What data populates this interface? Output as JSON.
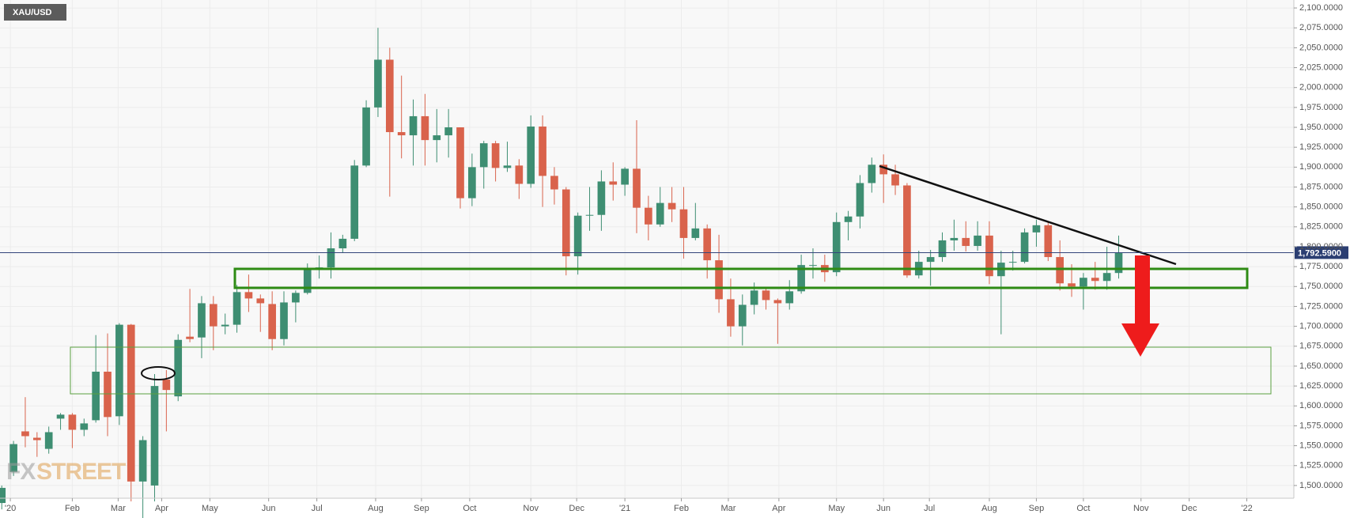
{
  "chart_data": {
    "type": "candlestick",
    "title": "XAU/USD",
    "watermark_prefix": "FX",
    "watermark": "STREET",
    "up_color": "#3e8e72",
    "down_color": "#d9634c",
    "grid": true,
    "x": [
      0,
      1,
      2,
      3,
      4,
      5,
      6,
      7,
      8,
      9,
      10,
      11,
      12,
      13,
      14,
      15,
      16,
      17,
      18,
      19,
      20,
      21,
      22,
      23,
      24,
      25,
      26,
      27,
      28,
      29,
      30,
      31,
      32,
      33,
      34,
      35,
      36,
      37,
      38,
      39,
      40,
      41,
      42,
      43,
      44,
      45,
      46,
      47,
      48,
      49,
      50,
      51,
      52,
      53,
      54,
      55,
      56,
      57,
      58,
      59,
      60,
      61,
      62,
      63,
      64,
      65,
      66,
      67,
      68,
      69,
      70,
      71,
      72,
      73,
      74,
      75,
      76,
      77,
      78,
      79,
      80,
      81,
      82,
      83,
      84,
      85,
      86,
      87,
      88,
      89,
      90,
      91,
      92,
      93,
      94,
      95
    ],
    "open": [
      1478,
      1517,
      1568,
      1560,
      1546,
      1584,
      1589,
      1570,
      1582,
      1643,
      1587,
      1702,
      1505,
      1500,
      1633,
      1612,
      1687,
      1686,
      1728,
      1700,
      1702,
      1743,
      1735,
      1728,
      1684,
      1730,
      1742,
      1771,
      1774,
      1798,
      1810,
      1902,
      1975,
      2035,
      1944,
      1940,
      1964,
      1934,
      1940,
      1950,
      1861,
      1900,
      1930,
      1899,
      1902,
      1879,
      1951,
      1889,
      1872,
      1788,
      1839,
      1840,
      1882,
      1878,
      1898,
      1849,
      1828,
      1855,
      1847,
      1811,
      1823,
      1783,
      1734,
      1700,
      1727,
      1745,
      1733,
      1729,
      1744,
      1777,
      1777,
      1768,
      1831,
      1838,
      1880,
      1903,
      1891,
      1877,
      1764,
      1781,
      1787,
      1808,
      1811,
      1801,
      1814,
      1763,
      1780,
      1781,
      1818,
      1827,
      1787,
      1754,
      1750,
      1761,
      1757,
      1767
    ],
    "high": [
      1500,
      1556,
      1611,
      1567,
      1574,
      1591,
      1591,
      1584,
      1689,
      1691,
      1704,
      1703,
      1562,
      1640,
      1645,
      1690,
      1747,
      1738,
      1738,
      1716,
      1752,
      1765,
      1740,
      1744,
      1744,
      1745,
      1779,
      1789,
      1818,
      1815,
      1909,
      1984,
      2075,
      2050,
      2015,
      1985,
      1992,
      1973,
      1973,
      1950,
      1917,
      1933,
      1933,
      1932,
      1910,
      1965,
      1965,
      1900,
      1875,
      1843,
      1875,
      1896,
      1906,
      1900,
      1959,
      1864,
      1875,
      1875,
      1875,
      1855,
      1828,
      1815,
      1760,
      1740,
      1755,
      1747,
      1735,
      1758,
      1790,
      1798,
      1790,
      1843,
      1845,
      1890,
      1912,
      1916,
      1903,
      1880,
      1795,
      1796,
      1818,
      1834,
      1832,
      1832,
      1832,
      1795,
      1795,
      1823,
      1834,
      1831,
      1808,
      1778,
      1767,
      1781,
      1800,
      1814
    ],
    "low": [
      1470,
      1512,
      1548,
      1536,
      1540,
      1570,
      1547,
      1562,
      1579,
      1562,
      1576,
      1480,
      1451,
      1480,
      1568,
      1606,
      1680,
      1660,
      1670,
      1690,
      1692,
      1718,
      1693,
      1670,
      1676,
      1705,
      1740,
      1760,
      1760,
      1792,
      1807,
      1900,
      1963,
      1863,
      1911,
      1902,
      1902,
      1906,
      1912,
      1848,
      1851,
      1873,
      1882,
      1894,
      1860,
      1874,
      1850,
      1853,
      1764,
      1765,
      1820,
      1820,
      1858,
      1864,
      1817,
      1808,
      1825,
      1831,
      1785,
      1808,
      1760,
      1717,
      1687,
      1676,
      1715,
      1721,
      1678,
      1721,
      1741,
      1760,
      1756,
      1763,
      1808,
      1823,
      1868,
      1855,
      1865,
      1761,
      1760,
      1751,
      1781,
      1795,
      1794,
      1795,
      1753,
      1690,
      1770,
      1779,
      1800,
      1782,
      1745,
      1737,
      1721,
      1746,
      1746,
      1760
    ],
    "close": [
      1497,
      1552,
      1562,
      1557,
      1567,
      1589,
      1570,
      1578,
      1643,
      1586,
      1702,
      1505,
      1557,
      1625,
      1620,
      1683,
      1684,
      1729,
      1700,
      1702,
      1743,
      1735,
      1729,
      1684,
      1730,
      1742,
      1771,
      1774,
      1798,
      1810,
      1902,
      1975,
      2035,
      1944,
      1940,
      1964,
      1934,
      1940,
      1950,
      1861,
      1900,
      1930,
      1899,
      1902,
      1879,
      1951,
      1889,
      1872,
      1788,
      1839,
      1840,
      1882,
      1878,
      1898,
      1849,
      1828,
      1855,
      1847,
      1811,
      1823,
      1783,
      1734,
      1700,
      1727,
      1745,
      1733,
      1729,
      1744,
      1777,
      1777,
      1768,
      1831,
      1838,
      1880,
      1903,
      1891,
      1877,
      1764,
      1781,
      1787,
      1808,
      1811,
      1801,
      1814,
      1763,
      1780,
      1781,
      1818,
      1827,
      1787,
      1754,
      1750,
      1761,
      1757,
      1767,
      1792
    ],
    "xlim": [
      -0.15,
      109.9
    ],
    "xticks": [
      {
        "value": 0.73,
        "label": "'20"
      },
      {
        "value": 6.0,
        "label": "Feb"
      },
      {
        "value": 9.9,
        "label": "Mar"
      },
      {
        "value": 13.6,
        "label": "Apr"
      },
      {
        "value": 17.7,
        "label": "May"
      },
      {
        "value": 22.7,
        "label": "Jun"
      },
      {
        "value": 26.8,
        "label": "Jul"
      },
      {
        "value": 31.8,
        "label": "Aug"
      },
      {
        "value": 35.7,
        "label": "Sep"
      },
      {
        "value": 39.8,
        "label": "Oct"
      },
      {
        "value": 45.0,
        "label": "Nov"
      },
      {
        "value": 48.9,
        "label": "Dec"
      },
      {
        "value": 53.0,
        "label": "'21"
      },
      {
        "value": 57.8,
        "label": "Feb"
      },
      {
        "value": 61.8,
        "label": "Mar"
      },
      {
        "value": 66.1,
        "label": "Apr"
      },
      {
        "value": 71.0,
        "label": "May"
      },
      {
        "value": 75.0,
        "label": "Jun"
      },
      {
        "value": 78.9,
        "label": "Jul"
      },
      {
        "value": 84.0,
        "label": "Aug"
      },
      {
        "value": 88.0,
        "label": "Sep"
      },
      {
        "value": 92.0,
        "label": "Oct"
      },
      {
        "value": 96.9,
        "label": "Nov"
      },
      {
        "value": 101.0,
        "label": "Dec"
      },
      {
        "value": 105.9,
        "label": "'22"
      }
    ],
    "ylim": [
      1484,
      2110
    ],
    "yticks": [
      {
        "value": 1500,
        "label": "1,500.0000"
      },
      {
        "value": 1525,
        "label": "1,525.0000"
      },
      {
        "value": 1550,
        "label": "1,550.0000"
      },
      {
        "value": 1575,
        "label": "1,575.0000"
      },
      {
        "value": 1600,
        "label": "1,600.0000"
      },
      {
        "value": 1625,
        "label": "1,625.0000"
      },
      {
        "value": 1650,
        "label": "1,650.0000"
      },
      {
        "value": 1675,
        "label": "1,675.0000"
      },
      {
        "value": 1700,
        "label": "1,700.0000"
      },
      {
        "value": 1725,
        "label": "1,725.0000"
      },
      {
        "value": 1750,
        "label": "1,750.0000"
      },
      {
        "value": 1775,
        "label": "1,775.0000"
      },
      {
        "value": 1800,
        "label": "1,800.0000"
      },
      {
        "value": 1825,
        "label": "1,825.0000"
      },
      {
        "value": 1850,
        "label": "1,850.0000"
      },
      {
        "value": 1875,
        "label": "1,875.0000"
      },
      {
        "value": 1900,
        "label": "1,900.0000"
      },
      {
        "value": 1925,
        "label": "1,925.0000"
      },
      {
        "value": 1950,
        "label": "1,950.0000"
      },
      {
        "value": 1975,
        "label": "1,975.0000"
      },
      {
        "value": 2000,
        "label": "2,000.0000"
      },
      {
        "value": 2025,
        "label": "2,025.0000"
      },
      {
        "value": 2050,
        "label": "2,050.0000"
      },
      {
        "value": 2075,
        "label": "2,075.0000"
      },
      {
        "value": 2100,
        "label": "2,100.0000"
      }
    ],
    "last_price": {
      "value": 1792.59,
      "label": "1,792.5900"
    }
  }
}
